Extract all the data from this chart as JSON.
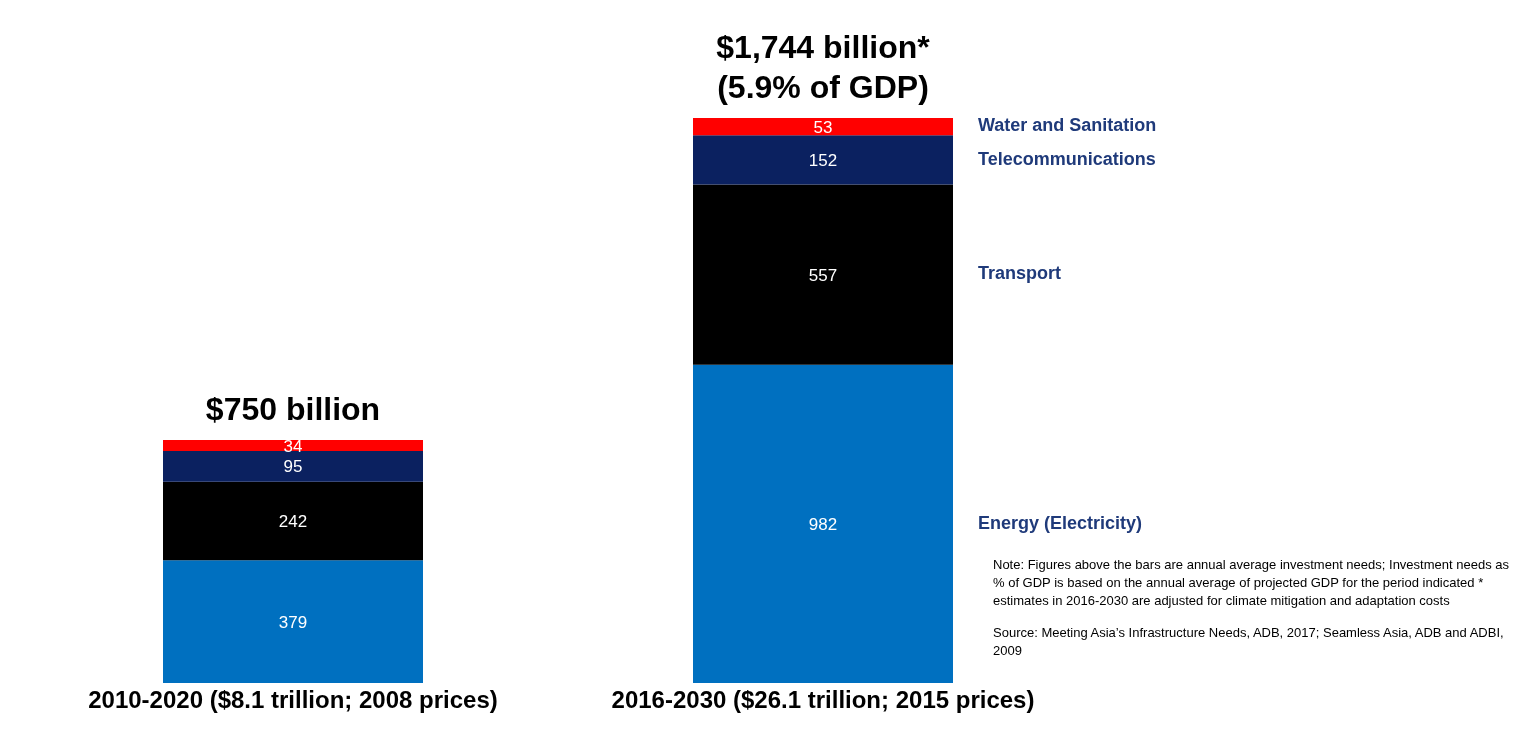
{
  "chart_data": {
    "type": "bar",
    "stacked": true,
    "data_labels": true,
    "categories": [
      "2010-2020 ($8.1 trillion; 2008 prices)",
      "2016-2030 ($26.1 trillion; 2015 prices)"
    ],
    "series": [
      {
        "name": "Energy (Electricity)",
        "color": "#0070c0",
        "values": [
          379,
          982
        ]
      },
      {
        "name": "Transport",
        "color": "#000000",
        "values": [
          242,
          557
        ]
      },
      {
        "name": "Telecommunications",
        "color": "#0b2160",
        "values": [
          95,
          152
        ]
      },
      {
        "name": "Water and Sanitation",
        "color": "#ff0000",
        "values": [
          34,
          53
        ]
      }
    ],
    "totals": [
      "$750 billion",
      "$1,744 billion*\n(5.9% of GDP)"
    ],
    "annotations": [
      "Note:  Figures above the bars are annual average investment needs; Investment needs as % of GDP is based on the annual average of projected GDP for the period indicated * estimates in 2016-2030 are adjusted for climate mitigation and adaptation costs",
      "Source:  Meeting Asia’s Infrastructure Needs, ADB, 2017; Seamless Asia, ADB and ADBI, 2009"
    ]
  }
}
